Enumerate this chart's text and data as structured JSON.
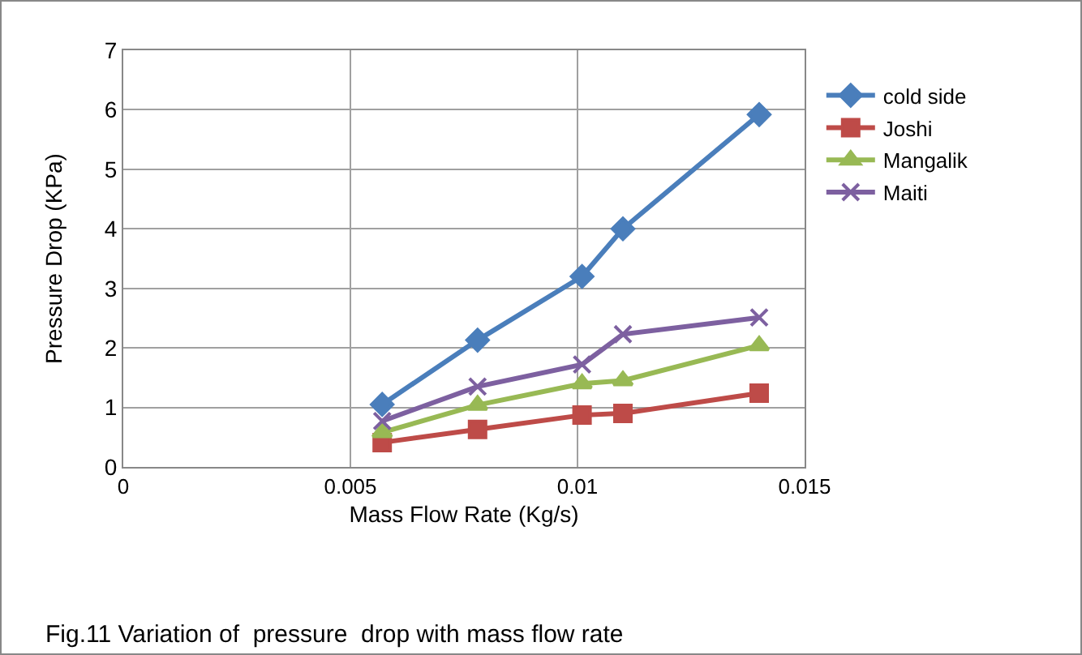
{
  "chart_data": {
    "type": "line",
    "xlabel": "Mass Flow Rate (Kg/s)",
    "ylabel": "Pressure Drop (KPa)",
    "x": [
      0.0057,
      0.0078,
      0.0101,
      0.011,
      0.014
    ],
    "series": [
      {
        "name": "cold side",
        "color": "#4a7ebb",
        "marker": "diamond",
        "values": [
          1.05,
          2.13,
          3.2,
          4.0,
          5.92
        ]
      },
      {
        "name": "Joshi",
        "color": "#be4b48",
        "marker": "square",
        "values": [
          0.41,
          0.63,
          0.87,
          0.9,
          1.24
        ]
      },
      {
        "name": "Mangalik",
        "color": "#98b954",
        "marker": "triangle",
        "values": [
          0.58,
          1.04,
          1.4,
          1.45,
          2.04
        ]
      },
      {
        "name": "Maiti",
        "color": "#7d60a0",
        "marker": "cross",
        "values": [
          0.77,
          1.35,
          1.72,
          2.23,
          2.51
        ]
      }
    ],
    "xlim": [
      0,
      0.015
    ],
    "xticks": [
      0,
      0.005,
      0.01,
      0.015
    ],
    "ylim": [
      0,
      7
    ],
    "yticks": [
      0,
      1,
      2,
      3,
      4,
      5,
      6,
      7
    ],
    "grid": true,
    "legend": "right",
    "line_style": "solid",
    "annotations": [
      "Fig.11 Variation of  pressure  drop with mass flow rate"
    ]
  }
}
